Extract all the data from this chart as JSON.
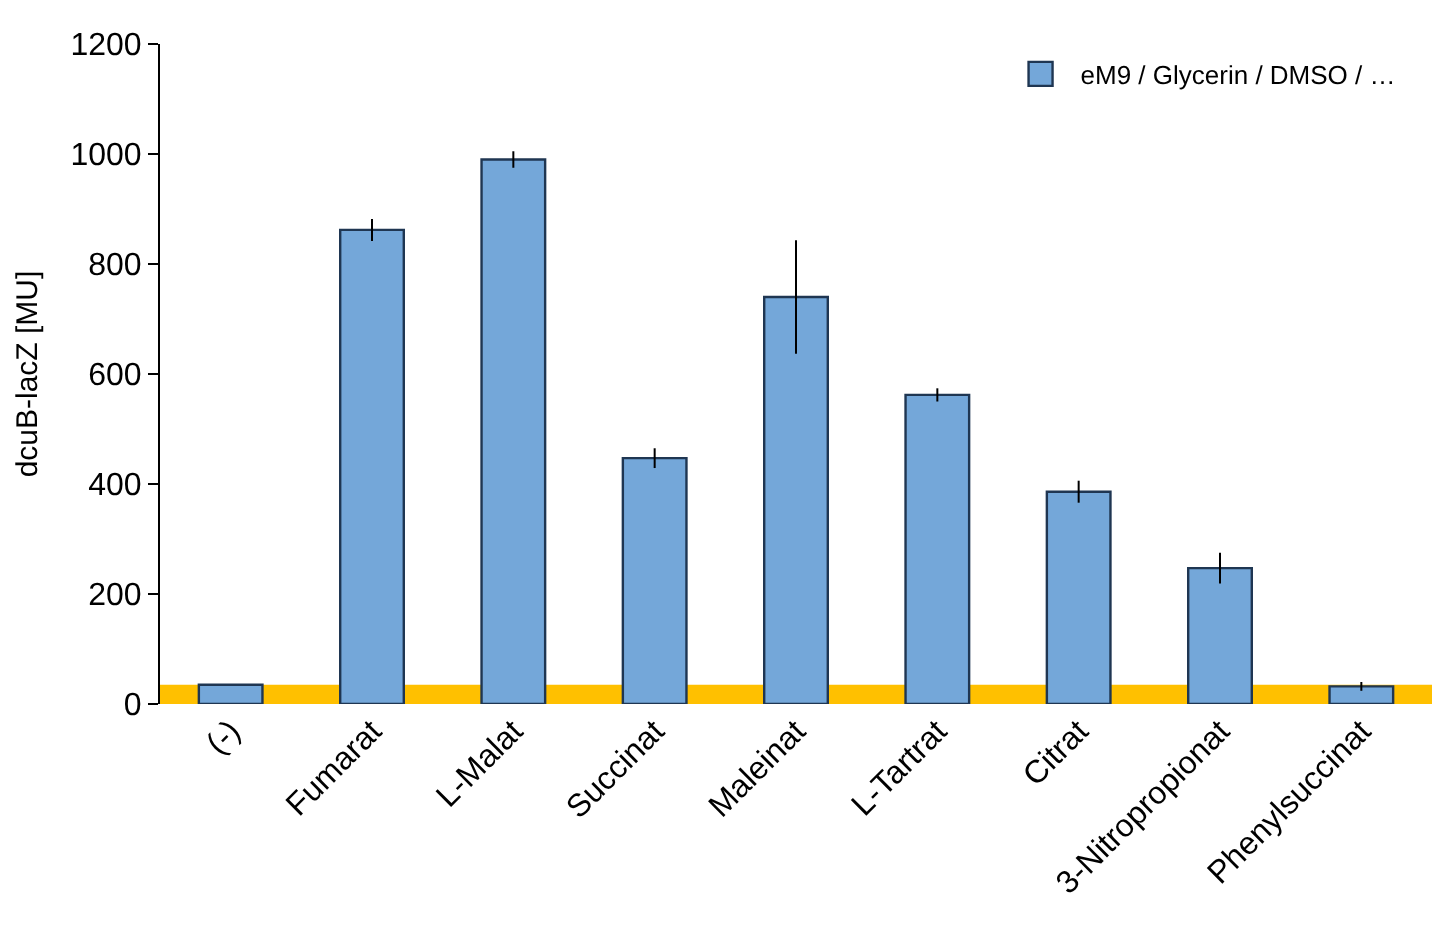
{
  "chart_data": {
    "type": "bar",
    "ylabel": "dcuB-lacZ [MU]",
    "categories": [
      "(-)",
      "Fumarat",
      "L-Malat",
      "Succinat",
      "Maleinat",
      "L-Tartrat",
      "Citrat",
      "3-Nitropropionat",
      "Phenylsuccinat"
    ],
    "series": [
      {
        "name": "eM9 / Glycerin / DMSO / …",
        "color": "#74a7d9",
        "values": [
          35,
          862,
          990,
          447,
          740,
          562,
          386,
          247,
          32
        ],
        "errors": [
          null,
          20,
          15,
          18,
          103,
          12,
          20,
          28,
          8
        ]
      }
    ],
    "ylim": [
      0,
      1200
    ],
    "yticks": [
      0,
      200,
      400,
      600,
      800,
      1000,
      1200
    ],
    "grid": false,
    "legend": "top right",
    "bands": [
      {
        "axis": "y",
        "from": 0,
        "to": 35,
        "color": "#ffc000"
      }
    ]
  }
}
